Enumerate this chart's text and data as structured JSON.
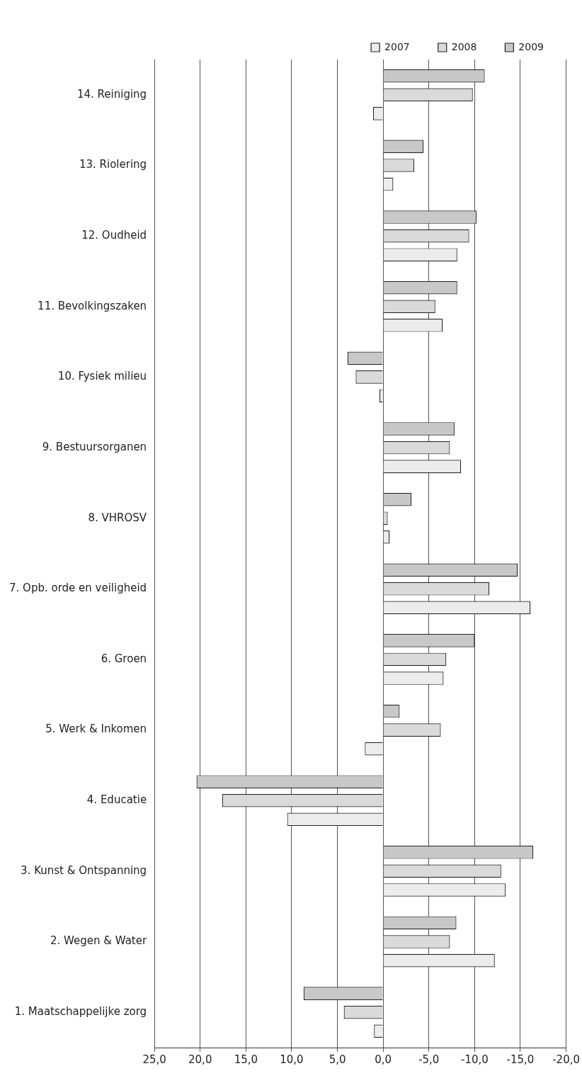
{
  "chart_data": {
    "type": "bar",
    "orientation": "horizontal",
    "categories": [
      "14. Reiniging",
      "13. Riolering",
      "12. Oudheid",
      "11. Bevolkingszaken",
      "10. Fysiek milieu",
      "9. Bestuursorganen",
      "8. VHROSV",
      "7. Opb. orde en veiligheid",
      "6. Groen",
      "5. Werk & Inkomen",
      "4. Educatie",
      "3. Kunst & Ontspanning",
      "2. Wegen & Water",
      "1. Maatschappelijke zorg"
    ],
    "series": [
      {
        "name": "2007",
        "color": "#ececec",
        "values": [
          1.1,
          -1.1,
          -8.1,
          -6.5,
          0.4,
          -8.5,
          -0.7,
          -16.1,
          -6.6,
          2.0,
          10.5,
          -13.4,
          -12.2,
          1.0
        ]
      },
      {
        "name": "2008",
        "color": "#dadada",
        "values": [
          -9.8,
          -3.4,
          -9.4,
          -5.7,
          3.0,
          -7.3,
          -0.5,
          -11.6,
          -6.9,
          -6.3,
          17.6,
          -12.9,
          -7.3,
          4.3
        ]
      },
      {
        "name": "2009",
        "color": "#c8c8c8",
        "values": [
          -11.1,
          -4.4,
          -10.2,
          -8.1,
          3.9,
          -7.8,
          -3.1,
          -14.7,
          -10.0,
          -1.8,
          20.4,
          -16.4,
          -8.0,
          8.7
        ]
      }
    ],
    "xlim": [
      25,
      -20
    ],
    "xticks": [
      {
        "value": 25,
        "label": "25,0"
      },
      {
        "value": 20,
        "label": "20,0"
      },
      {
        "value": 15,
        "label": "15,0"
      },
      {
        "value": 10,
        "label": "10,0"
      },
      {
        "value": 5,
        "label": "5,0"
      },
      {
        "value": 0,
        "label": "0,0"
      },
      {
        "value": -5,
        "label": "-5,0"
      },
      {
        "value": -10,
        "label": "-10,0"
      },
      {
        "value": -15,
        "label": "-15,0"
      },
      {
        "value": -20,
        "label": "-20,0"
      }
    ],
    "grid": "x",
    "legend": "top right"
  }
}
